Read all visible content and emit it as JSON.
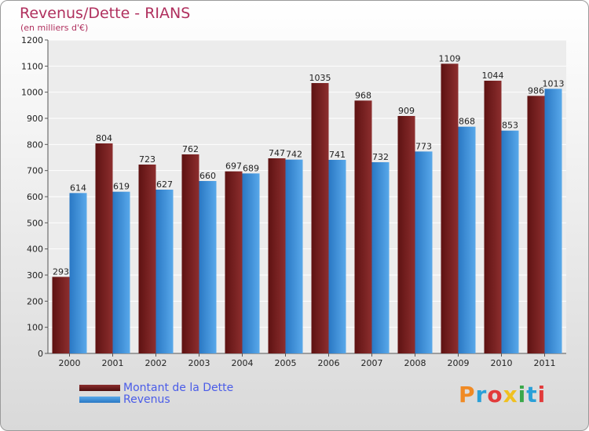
{
  "header": {
    "title": "Revenus/Dette - RIANS",
    "subtitle": "(en milliers d'€)"
  },
  "brand": {
    "logo_text": "Proxiti",
    "letter_colors": [
      "#f08a24",
      "#2aa0d8",
      "#e23b3b",
      "#f0c020",
      "#3aa84a",
      "#2aa0d8",
      "#e23b3b"
    ]
  },
  "colors": {
    "dette": "#7a1f1f",
    "revenus": "#2f86d6"
  },
  "chart_data": {
    "type": "bar",
    "title": "Revenus/Dette - RIANS",
    "subtitle": "(en milliers d'€)",
    "categories": [
      "2000",
      "2001",
      "2002",
      "2003",
      "2004",
      "2005",
      "2006",
      "2007",
      "2008",
      "2009",
      "2010",
      "2011"
    ],
    "series": [
      {
        "name": "Montant de la Dette",
        "values": [
          293,
          804,
          723,
          762,
          697,
          747,
          1035,
          968,
          909,
          1109,
          1044,
          986
        ]
      },
      {
        "name": "Revenus",
        "values": [
          614,
          619,
          627,
          660,
          689,
          742,
          741,
          732,
          773,
          868,
          853,
          1013
        ]
      }
    ],
    "ylim": [
      0,
      1200
    ],
    "yticks": [
      0,
      100,
      200,
      300,
      400,
      500,
      600,
      700,
      800,
      900,
      1000,
      1100,
      1200
    ],
    "grid": true,
    "legend": "bottom-left"
  }
}
